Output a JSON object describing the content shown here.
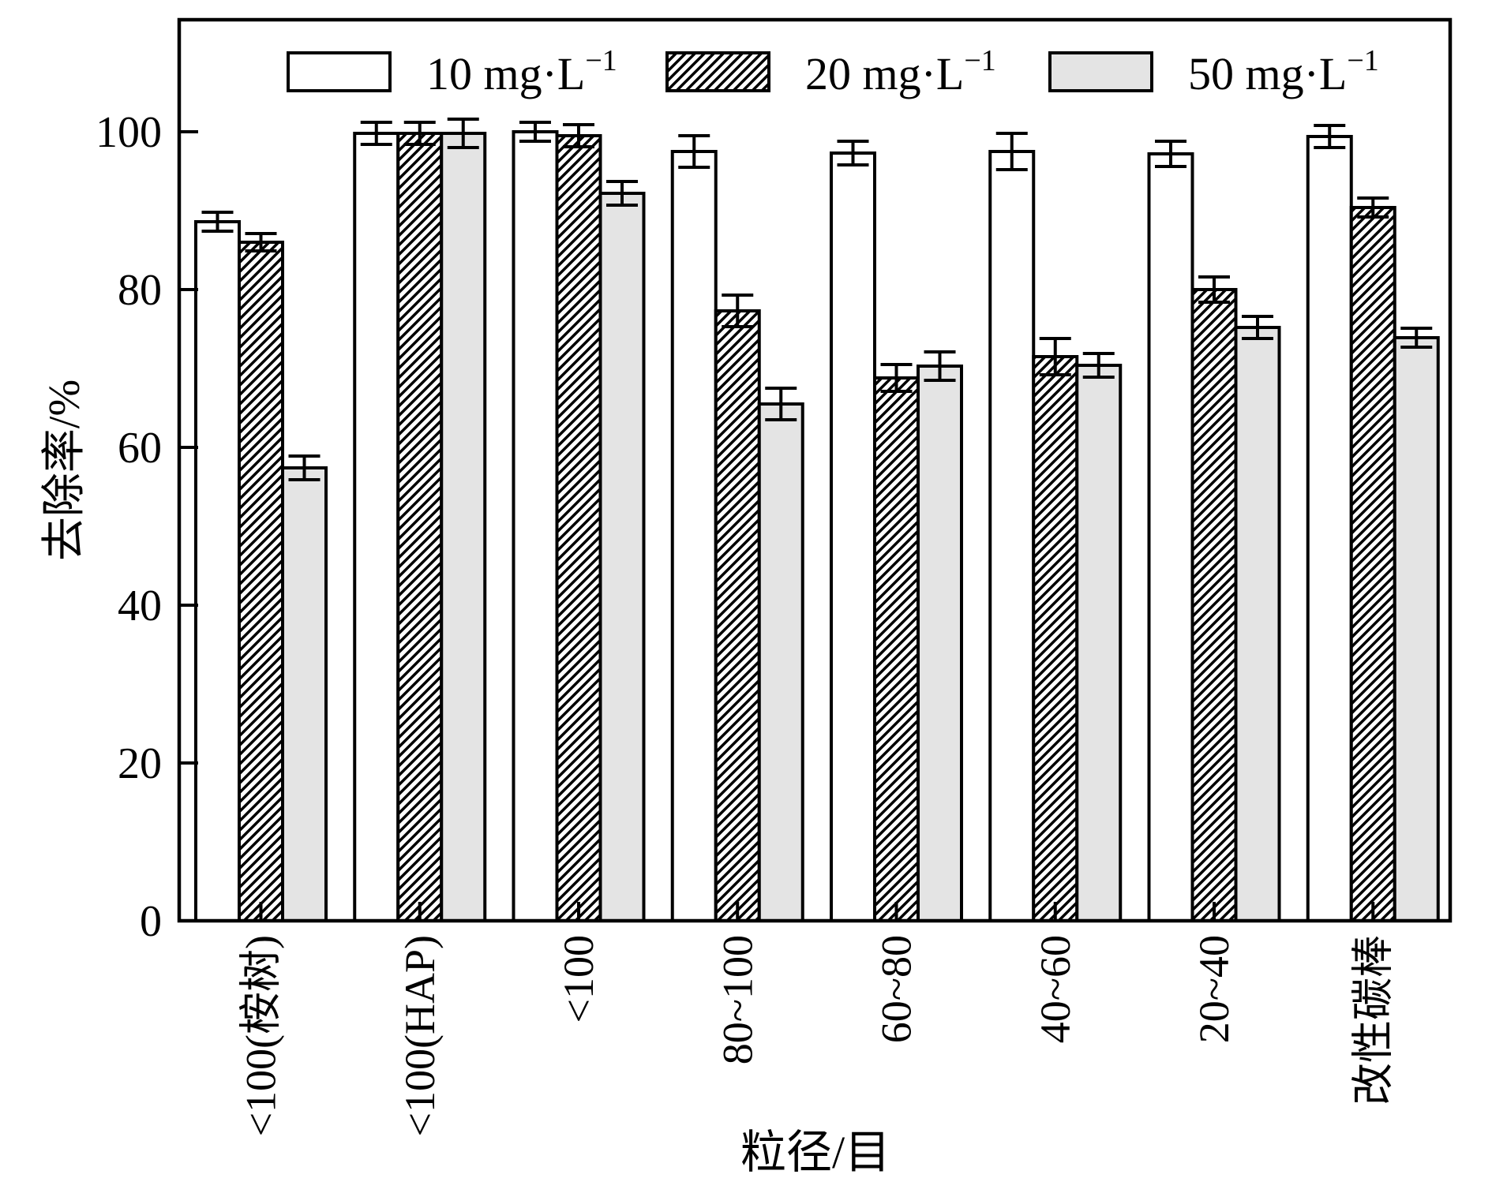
{
  "chart_data": {
    "type": "bar",
    "title": "",
    "xlabel": "粒径/目",
    "ylabel": "去除率/%",
    "ylim": [
      0,
      114
    ],
    "yticks": [
      0,
      20,
      40,
      60,
      80,
      100
    ],
    "grid": false,
    "legend_position": "top-inside",
    "categories": [
      "<100(桉树)",
      "<100(HAP)",
      "<100",
      "80~100",
      "60~80",
      "40~60",
      "20~40",
      "改性碳棒"
    ],
    "series": [
      {
        "name": "10 mg·L⁻¹",
        "label_base": "10 mg·L",
        "label_sup": "−1",
        "fill": "#ffffff",
        "hatch": false,
        "values": [
          88.6,
          99.8,
          100.0,
          97.5,
          97.3,
          97.5,
          97.2,
          99.4
        ],
        "errors": [
          1.2,
          1.4,
          1.2,
          2.0,
          1.5,
          2.3,
          1.6,
          1.4
        ]
      },
      {
        "name": "20 mg·L⁻¹",
        "label_base": "20 mg·L",
        "label_sup": "−1",
        "fill": "#ffffff",
        "hatch": true,
        "values": [
          86.0,
          99.8,
          99.5,
          77.3,
          68.8,
          71.5,
          80.0,
          90.4
        ],
        "errors": [
          1.1,
          1.4,
          1.4,
          2.0,
          1.7,
          2.3,
          1.6,
          1.2
        ]
      },
      {
        "name": "50 mg·L⁻¹",
        "label_base": "50 mg·L",
        "label_sup": "−1",
        "fill": "#e4e4e4",
        "hatch": false,
        "values": [
          57.4,
          99.8,
          92.2,
          65.5,
          70.3,
          70.4,
          75.2,
          73.9
        ],
        "errors": [
          1.5,
          1.8,
          1.5,
          2.0,
          1.8,
          1.5,
          1.4,
          1.2
        ]
      }
    ],
    "axis_color": "#000000",
    "error_bar_color": "#000000"
  }
}
